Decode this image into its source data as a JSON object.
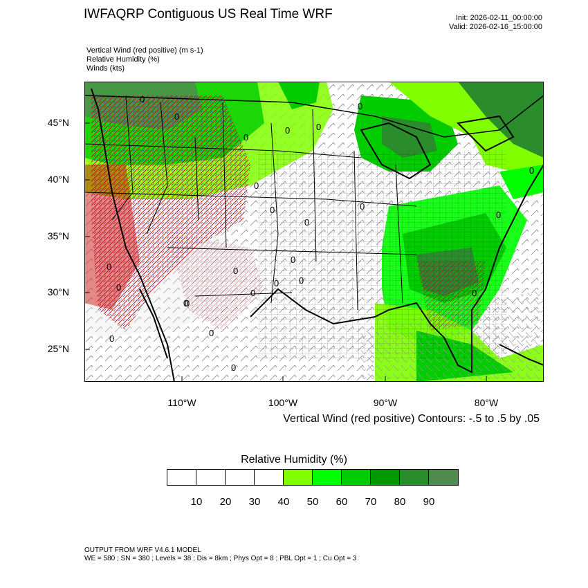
{
  "header": {
    "title": "IWFAQRP Contiguous US Real Time WRF",
    "init": "Init: 2026-02-11_00:00:00",
    "valid": "Valid: 2026-02-16_15:00:00"
  },
  "fields": {
    "line1": "Vertical Wind (red positive)   (m s-1)",
    "line2": "Relative Humidity   (%)",
    "line3": "Winds   (kts)"
  },
  "map": {
    "lat_labels": [
      "45°N",
      "40°N",
      "35°N",
      "30°N",
      "25°N"
    ],
    "lon_labels": [
      "110°W",
      "100°W",
      "90°W",
      "80°W"
    ],
    "contour_zero_label": "0",
    "colors": {
      "coast": "#000000",
      "positive_vertical_wind": "#cc0000",
      "negative_vertical_wind": "#2233cc"
    }
  },
  "contour_info": "Vertical Wind (red positive) Contours: -.5 to .5 by .05",
  "label_bar": {
    "title": "Relative Humidity  (%)",
    "colors": [
      "#ffffff",
      "#ffffff",
      "#ffffff",
      "#ffffff",
      "#80ff00",
      "#00ff00",
      "#00cc00",
      "#009900",
      "#2a8c2a",
      "#508c50"
    ],
    "labels": [
      "10",
      "20",
      "30",
      "40",
      "50",
      "60",
      "70",
      "80",
      "90"
    ]
  },
  "footer": {
    "line1": "OUTPUT FROM WRF V4.6.1 MODEL",
    "line2": "WE = 580 ; SN = 380 ; Levels = 38 ; Dis = 8km ; Phys Opt = 8 ; PBL Opt = 1 ; Cu Opt = 3"
  }
}
